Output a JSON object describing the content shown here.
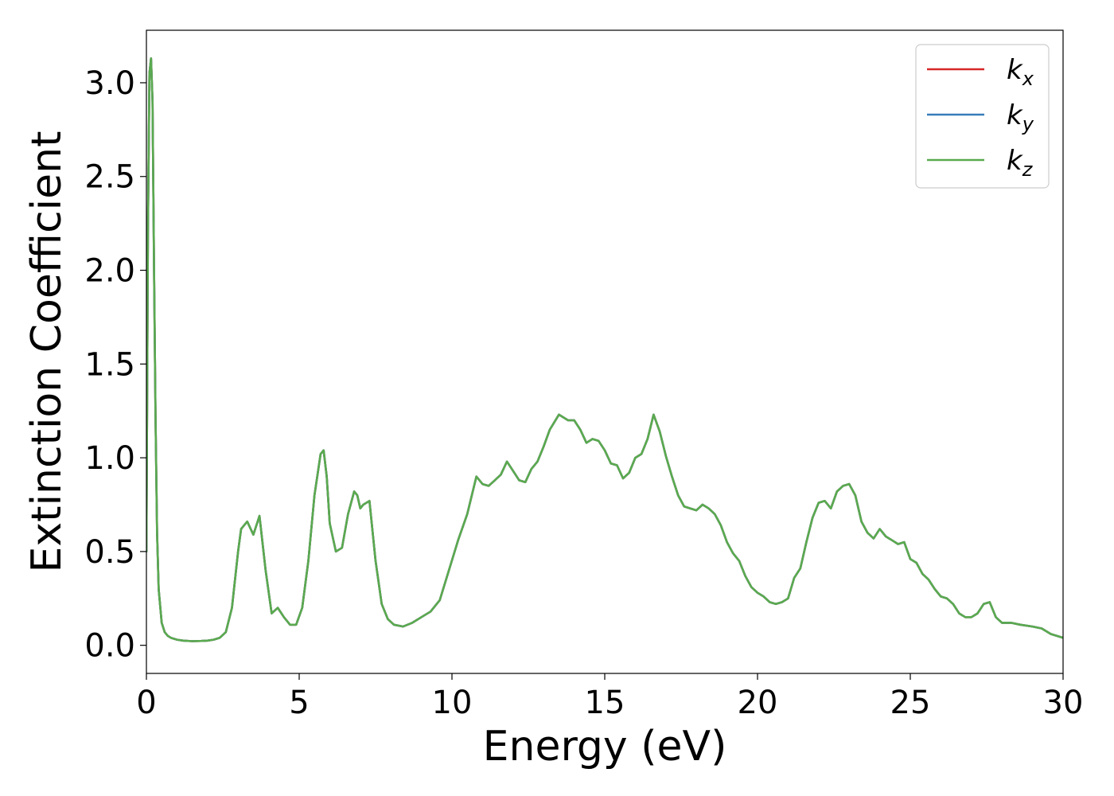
{
  "chart_data": {
    "type": "line",
    "xlabel": "Energy (eV)",
    "ylabel": "Extinction Coefficient",
    "xlim": [
      0,
      30
    ],
    "ylim": [
      -0.15,
      3.28
    ],
    "xticks": [
      0,
      5,
      10,
      15,
      20,
      25,
      30
    ],
    "yticks": [
      0.0,
      0.5,
      1.0,
      1.5,
      2.0,
      2.5,
      3.0
    ],
    "xtick_labels": [
      "0",
      "5",
      "10",
      "15",
      "20",
      "25",
      "30"
    ],
    "ytick_labels": [
      "0.0",
      "0.5",
      "1.0",
      "1.5",
      "2.0",
      "2.5",
      "3.0"
    ],
    "grid": false,
    "legend_position": "top-right",
    "series": [
      {
        "name": "k",
        "subscript": "x",
        "color": "#d62728"
      },
      {
        "name": "k",
        "subscript": "y",
        "color": "#377eb8"
      },
      {
        "name": "k",
        "subscript": "z",
        "color": "#5aaa4f"
      }
    ],
    "x": [
      0,
      0.05,
      0.1,
      0.15,
      0.2,
      0.25,
      0.3,
      0.35,
      0.4,
      0.5,
      0.6,
      0.7,
      0.8,
      1.0,
      1.2,
      1.5,
      1.8,
      2.0,
      2.2,
      2.4,
      2.6,
      2.8,
      3.0,
      3.1,
      3.3,
      3.5,
      3.7,
      3.9,
      4.1,
      4.3,
      4.5,
      4.7,
      4.9,
      5.1,
      5.3,
      5.5,
      5.7,
      5.8,
      5.9,
      6.0,
      6.2,
      6.4,
      6.6,
      6.8,
      6.9,
      7.0,
      7.1,
      7.3,
      7.5,
      7.7,
      7.9,
      8.1,
      8.4,
      8.7,
      9.0,
      9.3,
      9.6,
      9.9,
      10.2,
      10.5,
      10.8,
      11.0,
      11.2,
      11.4,
      11.6,
      11.8,
      12.0,
      12.2,
      12.4,
      12.6,
      12.8,
      13.0,
      13.2,
      13.5,
      13.8,
      14.0,
      14.2,
      14.4,
      14.6,
      14.8,
      15.0,
      15.2,
      15.4,
      15.6,
      15.8,
      16.0,
      16.2,
      16.4,
      16.6,
      16.8,
      17.0,
      17.2,
      17.4,
      17.6,
      17.8,
      18.0,
      18.2,
      18.4,
      18.6,
      18.8,
      19.0,
      19.2,
      19.4,
      19.6,
      19.8,
      20.0,
      20.2,
      20.4,
      20.6,
      20.8,
      21.0,
      21.2,
      21.4,
      21.6,
      21.8,
      22.0,
      22.2,
      22.4,
      22.6,
      22.8,
      23.0,
      23.2,
      23.4,
      23.6,
      23.8,
      24.0,
      24.2,
      24.4,
      24.6,
      24.8,
      25.0,
      25.2,
      25.4,
      25.6,
      25.8,
      26.0,
      26.2,
      26.4,
      26.6,
      26.8,
      27.0,
      27.2,
      27.4,
      27.6,
      27.8,
      28.0,
      28.3,
      28.6,
      29.0,
      29.3,
      29.6,
      30.0
    ],
    "values": [
      0.5,
      2.2,
      3.05,
      3.13,
      2.9,
      2.0,
      1.2,
      0.6,
      0.3,
      0.12,
      0.07,
      0.05,
      0.04,
      0.03,
      0.025,
      0.022,
      0.023,
      0.025,
      0.03,
      0.04,
      0.07,
      0.2,
      0.5,
      0.62,
      0.66,
      0.59,
      0.69,
      0.4,
      0.17,
      0.2,
      0.15,
      0.11,
      0.11,
      0.2,
      0.45,
      0.8,
      1.02,
      1.04,
      0.9,
      0.65,
      0.5,
      0.52,
      0.7,
      0.82,
      0.8,
      0.73,
      0.75,
      0.77,
      0.45,
      0.22,
      0.14,
      0.11,
      0.1,
      0.12,
      0.15,
      0.18,
      0.24,
      0.4,
      0.56,
      0.7,
      0.9,
      0.86,
      0.85,
      0.88,
      0.91,
      0.98,
      0.93,
      0.88,
      0.87,
      0.94,
      0.98,
      1.06,
      1.15,
      1.23,
      1.2,
      1.2,
      1.15,
      1.08,
      1.1,
      1.09,
      1.04,
      0.97,
      0.96,
      0.89,
      0.92,
      1.0,
      1.02,
      1.1,
      1.23,
      1.14,
      1.01,
      0.9,
      0.8,
      0.74,
      0.73,
      0.72,
      0.75,
      0.73,
      0.7,
      0.64,
      0.55,
      0.49,
      0.45,
      0.37,
      0.31,
      0.28,
      0.26,
      0.23,
      0.22,
      0.23,
      0.25,
      0.36,
      0.41,
      0.55,
      0.68,
      0.76,
      0.77,
      0.73,
      0.82,
      0.85,
      0.86,
      0.8,
      0.66,
      0.6,
      0.57,
      0.62,
      0.58,
      0.56,
      0.54,
      0.55,
      0.46,
      0.44,
      0.38,
      0.35,
      0.3,
      0.26,
      0.25,
      0.22,
      0.17,
      0.15,
      0.15,
      0.17,
      0.22,
      0.23,
      0.15,
      0.12,
      0.12,
      0.11,
      0.1,
      0.09,
      0.06,
      0.04
    ]
  }
}
